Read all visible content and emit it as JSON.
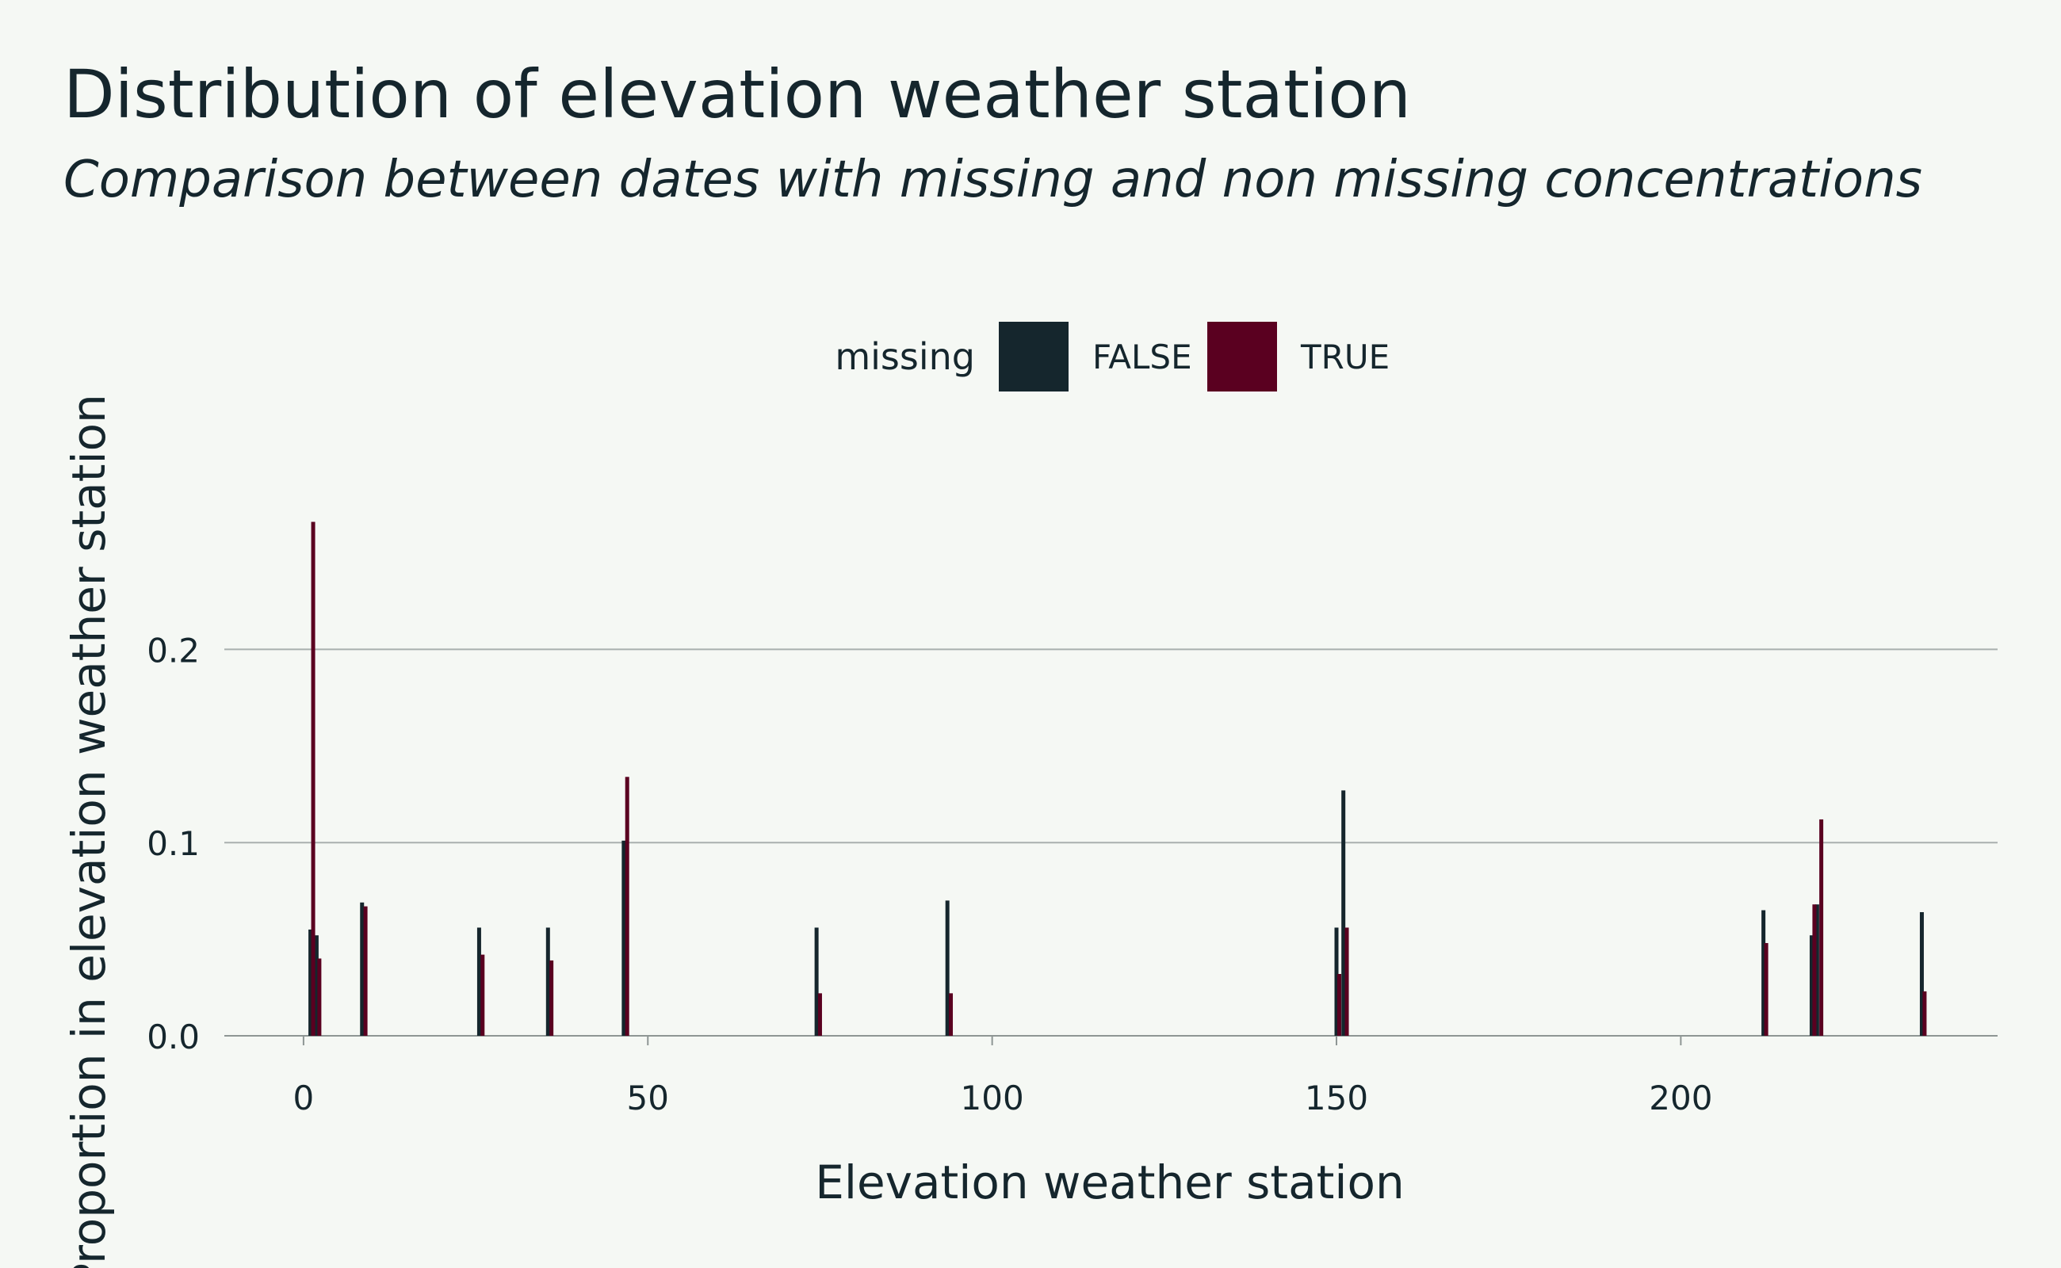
{
  "chart_data": {
    "type": "bar",
    "title": "Distribution of elevation weather station",
    "subtitle": "Comparison between dates with missing and non missing concentrations",
    "xlabel": "Elevation weather station",
    "ylabel": "Proportion in elevation weather station",
    "xlim": [
      -11.5,
      246
    ],
    "ylim": [
      0,
      0.29
    ],
    "xticks": [
      0,
      50,
      100,
      150,
      200
    ],
    "xtick_labels": [
      "0",
      "50",
      "100",
      "150",
      "200"
    ],
    "yticks": [
      0.0,
      0.1,
      0.2
    ],
    "ytick_labels": [
      "0.0",
      "0.1",
      "0.2"
    ],
    "grid": {
      "horizontal": true,
      "vertical": false
    },
    "legend": {
      "title": "missing",
      "position": "top"
    },
    "series": [
      {
        "name": "FALSE",
        "color": "#15262d",
        "points": [
          {
            "x": 1,
            "y": 0.055
          },
          {
            "x": 1.9,
            "y": 0.052
          },
          {
            "x": 8.5,
            "y": 0.069
          },
          {
            "x": 25.5,
            "y": 0.056
          },
          {
            "x": 35.5,
            "y": 0.056
          },
          {
            "x": 46.5,
            "y": 0.101
          },
          {
            "x": 74.5,
            "y": 0.056
          },
          {
            "x": 93.5,
            "y": 0.07
          },
          {
            "x": 150,
            "y": 0.056
          },
          {
            "x": 151,
            "y": 0.127
          },
          {
            "x": 212,
            "y": 0.065
          },
          {
            "x": 219,
            "y": 0.052
          },
          {
            "x": 219.8,
            "y": 0.068
          },
          {
            "x": 235,
            "y": 0.064
          }
        ]
      },
      {
        "name": "TRUE",
        "color": "#5a0020",
        "points": [
          {
            "x": 1.4,
            "y": 0.266
          },
          {
            "x": 2.3,
            "y": 0.04
          },
          {
            "x": 9,
            "y": 0.067
          },
          {
            "x": 26,
            "y": 0.042
          },
          {
            "x": 36,
            "y": 0.039
          },
          {
            "x": 47,
            "y": 0.134
          },
          {
            "x": 75,
            "y": 0.022
          },
          {
            "x": 94,
            "y": 0.022
          },
          {
            "x": 150.4,
            "y": 0.032
          },
          {
            "x": 151.5,
            "y": 0.056
          },
          {
            "x": 212.4,
            "y": 0.048
          },
          {
            "x": 219.4,
            "y": 0.068
          },
          {
            "x": 220.4,
            "y": 0.112
          },
          {
            "x": 235.4,
            "y": 0.023
          }
        ]
      }
    ]
  }
}
